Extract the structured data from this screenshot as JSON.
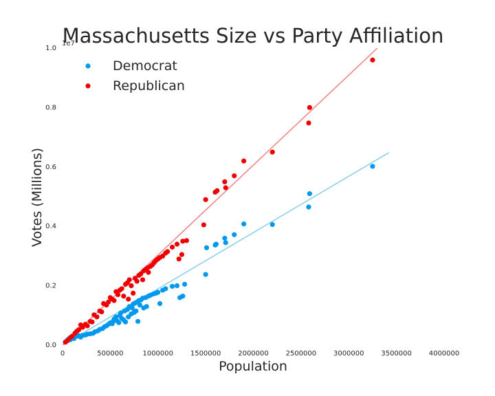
{
  "chart_data": {
    "type": "scatter",
    "title": "Massachusetts Size vs Party Affiliation",
    "xlabel": "Population",
    "ylabel": "Votes (Millions)",
    "y_offset_label": "1e7",
    "xlim": [
      0,
      4000000
    ],
    "ylim": [
      0,
      10000000
    ],
    "x_ticks": [
      0,
      500000,
      1000000,
      1500000,
      2000000,
      2500000,
      3000000,
      3500000,
      4000000
    ],
    "x_tick_labels": [
      "0",
      "500000",
      "1000000",
      "1500000",
      "2000000",
      "2500000",
      "3000000",
      "3500000",
      "4000000"
    ],
    "y_ticks": [
      0,
      2000000,
      4000000,
      6000000,
      8000000,
      10000000
    ],
    "y_tick_labels": [
      "0.0",
      "0.2",
      "0.4",
      "0.6",
      "0.8",
      "1.0"
    ],
    "grid": false,
    "legend_position": "top-left",
    "series": [
      {
        "name": "Democrat",
        "color": "#0099ee",
        "line_color": "#87ceeb",
        "trend_line": [
          [
            0,
            0
          ],
          [
            3420000,
            6480000
          ]
        ],
        "points": [
          [
            30000,
            100000
          ],
          [
            45000,
            150000
          ],
          [
            60000,
            200000
          ],
          [
            80000,
            180000
          ],
          [
            100000,
            250000
          ],
          [
            120000,
            220000
          ],
          [
            150000,
            300000
          ],
          [
            170000,
            320000
          ],
          [
            190000,
            270000
          ],
          [
            210000,
            330000
          ],
          [
            240000,
            340000
          ],
          [
            260000,
            370000
          ],
          [
            290000,
            380000
          ],
          [
            320000,
            400000
          ],
          [
            340000,
            450000
          ],
          [
            370000,
            480000
          ],
          [
            390000,
            530000
          ],
          [
            420000,
            560000
          ],
          [
            440000,
            620000
          ],
          [
            460000,
            650000
          ],
          [
            480000,
            700000
          ],
          [
            500000,
            750000
          ],
          [
            520000,
            720000
          ],
          [
            530000,
            800000
          ],
          [
            540000,
            880000
          ],
          [
            560000,
            950000
          ],
          [
            570000,
            820000
          ],
          [
            590000,
            760000
          ],
          [
            600000,
            1000000
          ],
          [
            610000,
            1080000
          ],
          [
            620000,
            900000
          ],
          [
            640000,
            850000
          ],
          [
            650000,
            1150000
          ],
          [
            660000,
            780000
          ],
          [
            680000,
            1200000
          ],
          [
            690000,
            950000
          ],
          [
            700000,
            1300000
          ],
          [
            720000,
            1050000
          ],
          [
            730000,
            1250000
          ],
          [
            740000,
            1380000
          ],
          [
            750000,
            1100000
          ],
          [
            760000,
            1420000
          ],
          [
            770000,
            1150000
          ],
          [
            780000,
            1450000
          ],
          [
            790000,
            800000
          ],
          [
            800000,
            1500000
          ],
          [
            810000,
            1350000
          ],
          [
            820000,
            1520000
          ],
          [
            840000,
            1580000
          ],
          [
            850000,
            1250000
          ],
          [
            870000,
            1600000
          ],
          [
            880000,
            1300000
          ],
          [
            900000,
            1650000
          ],
          [
            920000,
            1680000
          ],
          [
            950000,
            1720000
          ],
          [
            980000,
            1750000
          ],
          [
            1000000,
            1780000
          ],
          [
            1020000,
            1400000
          ],
          [
            1050000,
            1850000
          ],
          [
            1080000,
            1900000
          ],
          [
            1150000,
            1980000
          ],
          [
            1200000,
            2000000
          ],
          [
            1230000,
            1600000
          ],
          [
            1260000,
            1650000
          ],
          [
            1280000,
            2050000
          ],
          [
            1500000,
            2380000
          ],
          [
            1510000,
            3280000
          ],
          [
            1600000,
            3370000
          ],
          [
            1610000,
            3400000
          ],
          [
            1700000,
            3600000
          ],
          [
            1710000,
            3450000
          ],
          [
            1800000,
            3720000
          ],
          [
            1900000,
            4080000
          ],
          [
            2200000,
            4060000
          ],
          [
            2580000,
            4650000
          ],
          [
            2590000,
            5100000
          ],
          [
            3250000,
            6020000
          ]
        ]
      },
      {
        "name": "Republican",
        "color": "#ee0000",
        "line_color": "#f08080",
        "trend_line": [
          [
            0,
            0
          ],
          [
            3300000,
            10000000
          ]
        ],
        "points": [
          [
            30000,
            100000
          ],
          [
            50000,
            150000
          ],
          [
            80000,
            250000
          ],
          [
            100000,
            300000
          ],
          [
            130000,
            400000
          ],
          [
            150000,
            470000
          ],
          [
            170000,
            520000
          ],
          [
            190000,
            680000
          ],
          [
            210000,
            600000
          ],
          [
            240000,
            700000
          ],
          [
            260000,
            650000
          ],
          [
            290000,
            800000
          ],
          [
            310000,
            780000
          ],
          [
            330000,
            1020000
          ],
          [
            360000,
            950000
          ],
          [
            390000,
            1150000
          ],
          [
            410000,
            1120000
          ],
          [
            430000,
            1400000
          ],
          [
            460000,
            1350000
          ],
          [
            480000,
            1450000
          ],
          [
            500000,
            1600000
          ],
          [
            520000,
            1550000
          ],
          [
            540000,
            1500000
          ],
          [
            560000,
            1800000
          ],
          [
            580000,
            1700000
          ],
          [
            600000,
            1850000
          ],
          [
            620000,
            1900000
          ],
          [
            640000,
            1650000
          ],
          [
            660000,
            2050000
          ],
          [
            680000,
            2100000
          ],
          [
            690000,
            1550000
          ],
          [
            700000,
            2200000
          ],
          [
            720000,
            2000000
          ],
          [
            740000,
            1750000
          ],
          [
            760000,
            2250000
          ],
          [
            780000,
            2150000
          ],
          [
            800000,
            2350000
          ],
          [
            820000,
            2400000
          ],
          [
            840000,
            2200000
          ],
          [
            850000,
            2500000
          ],
          [
            870000,
            2550000
          ],
          [
            890000,
            2600000
          ],
          [
            900000,
            2450000
          ],
          [
            920000,
            2650000
          ],
          [
            940000,
            2700000
          ],
          [
            960000,
            2780000
          ],
          [
            980000,
            2850000
          ],
          [
            1000000,
            2900000
          ],
          [
            1020000,
            2950000
          ],
          [
            1050000,
            3000000
          ],
          [
            1080000,
            3100000
          ],
          [
            1100000,
            3150000
          ],
          [
            1150000,
            3300000
          ],
          [
            1200000,
            3400000
          ],
          [
            1220000,
            2900000
          ],
          [
            1250000,
            3050000
          ],
          [
            1260000,
            3500000
          ],
          [
            1300000,
            3520000
          ],
          [
            1480000,
            4050000
          ],
          [
            1500000,
            4900000
          ],
          [
            1600000,
            5150000
          ],
          [
            1620000,
            5200000
          ],
          [
            1700000,
            5500000
          ],
          [
            1710000,
            5300000
          ],
          [
            1800000,
            5700000
          ],
          [
            1900000,
            6200000
          ],
          [
            2200000,
            6500000
          ],
          [
            2580000,
            7480000
          ],
          [
            2590000,
            8000000
          ],
          [
            3250000,
            9600000
          ]
        ]
      }
    ]
  }
}
